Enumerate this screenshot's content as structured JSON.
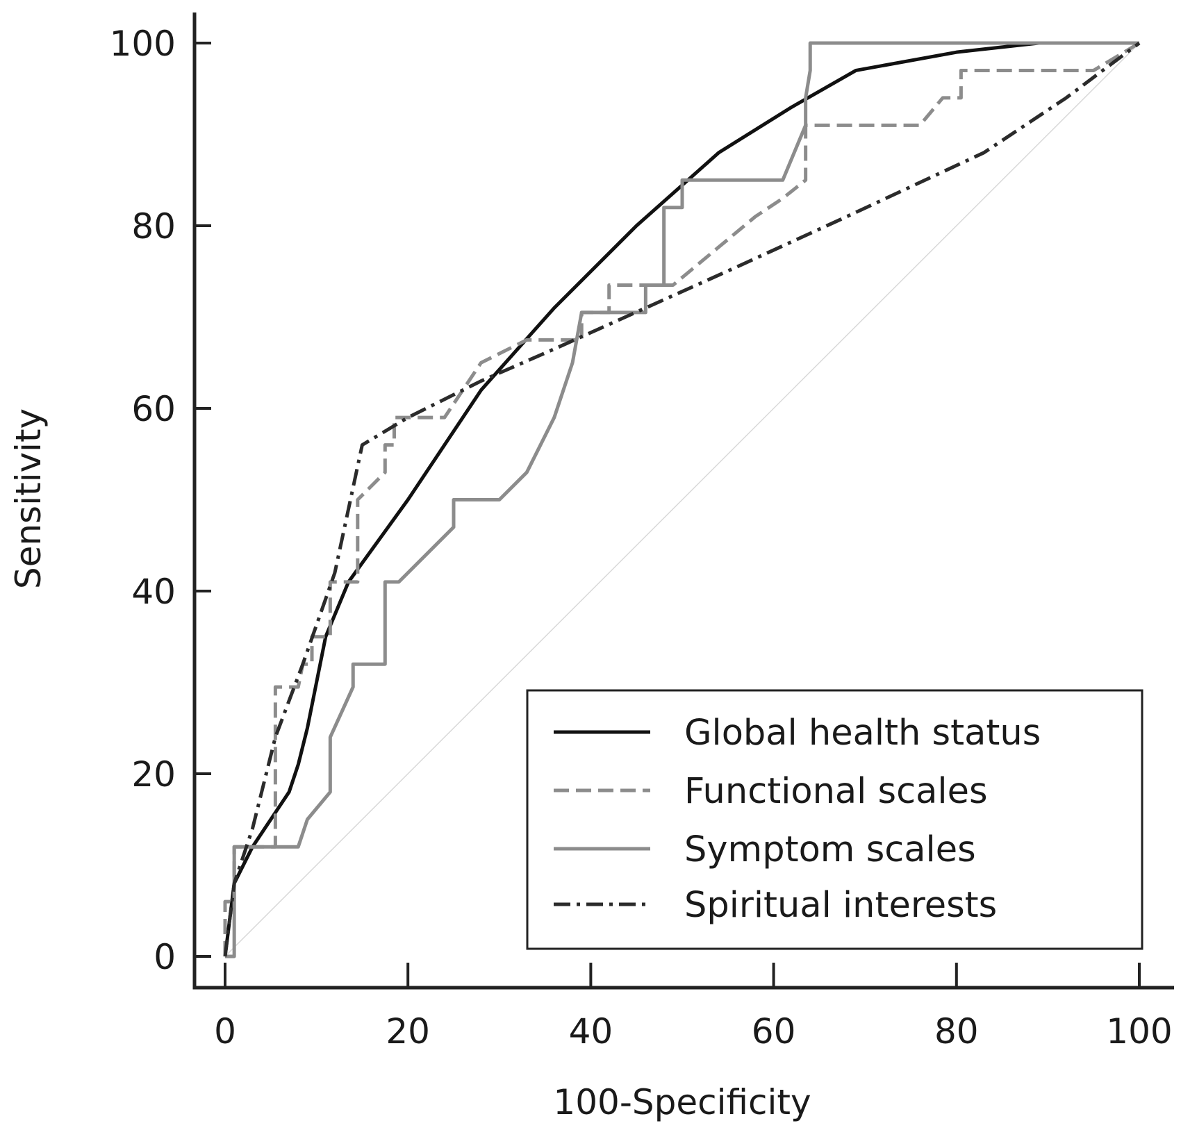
{
  "chart_data": {
    "type": "line",
    "title": "",
    "xlabel": "100-Specificity",
    "ylabel": "Sensitivity",
    "xlim": [
      0,
      100
    ],
    "ylim": [
      0,
      100
    ],
    "xticks": [
      0,
      20,
      40,
      60,
      80,
      100
    ],
    "yticks": [
      0,
      20,
      40,
      60,
      80,
      100
    ],
    "grid": false,
    "legend_position": "bottom-right",
    "reference_line": {
      "x": [
        0,
        100
      ],
      "y": [
        0,
        100
      ],
      "color": "#d9d9d9"
    },
    "series": [
      {
        "name": "Global health status",
        "style": "solid",
        "color": "#111111",
        "x": [
          0,
          1,
          3,
          5,
          7,
          8,
          9,
          11,
          13.5,
          20,
          28,
          36,
          45,
          54,
          62,
          69,
          80,
          89,
          100
        ],
        "y": [
          0,
          8,
          12,
          15,
          18,
          21,
          25,
          35,
          41,
          50,
          62,
          71,
          80,
          88,
          93,
          97,
          99,
          100,
          100
        ]
      },
      {
        "name": "Functional scales",
        "style": "dashed",
        "color": "#8c8c8c",
        "x": [
          0,
          0,
          1,
          1,
          5.5,
          5.5,
          8,
          8.5,
          9.5,
          9.5,
          11.5,
          11.5,
          14.5,
          14.5,
          17.5,
          17.5,
          18.5,
          18.5,
          24,
          28,
          33,
          33,
          39,
          39,
          42,
          42,
          49,
          49,
          52,
          58,
          61,
          63.5,
          63.5,
          76,
          78.5,
          79.5,
          80.5,
          80.5,
          95,
          100
        ],
        "y": [
          0,
          6,
          6,
          12,
          12,
          29.5,
          29.5,
          32,
          32,
          35,
          35,
          41,
          41,
          50,
          53,
          56,
          56,
          59,
          59,
          65,
          67.5,
          67.5,
          67.5,
          70.5,
          70.5,
          73.5,
          73.5,
          73.5,
          76,
          81,
          83,
          85,
          91,
          91,
          94,
          94,
          94,
          97,
          97,
          100
        ]
      },
      {
        "name": "Symptom scales",
        "style": "solid",
        "color": "#8c8c8c",
        "x": [
          0,
          1,
          1,
          1,
          8,
          9,
          11.5,
          11.5,
          14,
          14,
          17.5,
          17.5,
          19,
          25,
          25,
          30,
          33,
          36,
          38,
          39,
          39,
          46,
          46,
          48,
          48,
          50,
          50,
          61,
          63.5,
          63.5,
          64,
          64,
          100
        ],
        "y": [
          0,
          0,
          12,
          12,
          12,
          15,
          18,
          24,
          29.5,
          32,
          32,
          41,
          41,
          47,
          50,
          50,
          53,
          59,
          65,
          70.5,
          70.5,
          70.5,
          73.5,
          73.5,
          82,
          82,
          85,
          85,
          91,
          94,
          97,
          100,
          100
        ]
      },
      {
        "name": "Spiritual interests",
        "style": "dash-dot",
        "color": "#2b2b2b",
        "x": [
          0,
          0.5,
          1,
          3,
          5.5,
          8.5,
          12,
          15,
          20,
          28,
          36,
          46,
          56,
          68,
          83,
          92,
          100
        ],
        "y": [
          0,
          4,
          8,
          14,
          24,
          32,
          42,
          56,
          59,
          63,
          66.5,
          71,
          75.5,
          81,
          88,
          94,
          100
        ]
      }
    ]
  }
}
